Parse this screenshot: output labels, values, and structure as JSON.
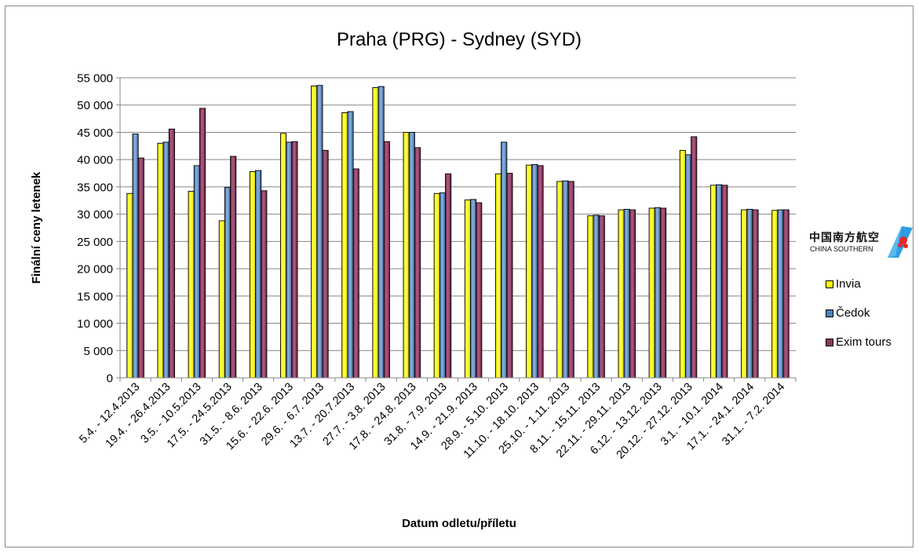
{
  "chart_data": {
    "type": "bar",
    "title": "Praha (PRG) - Sydney (SYD)",
    "xlabel": "Datum odletu/příletu",
    "ylabel": "Finální ceny letenek",
    "ylim": [
      0,
      55000
    ],
    "yticks": [
      0,
      5000,
      10000,
      15000,
      20000,
      25000,
      30000,
      35000,
      40000,
      45000,
      50000,
      55000
    ],
    "ytick_labels": [
      "0",
      "5 000",
      "10 000",
      "15 000",
      "20 000",
      "25 000",
      "30 000",
      "35 000",
      "40 000",
      "45 000",
      "50 000",
      "55 000"
    ],
    "grid": true,
    "legend_position": "right",
    "categories": [
      "5.4. - 12.4.2013",
      "19.4. - 26.4.2013",
      "3.5. - 10.5.2013",
      "17.5. - 24.5.2013",
      "31.5. - 8.6. 2013",
      "15.6. - 22.6. 2013",
      "29.6. - 6.7. 2013",
      "13.7. - 20.7.2013",
      "27.7. - 3.8. 2013",
      "17.8. - 24.8. 2013",
      "31.8. - 7.9. 2013",
      "14.9. - 21.9. 2013",
      "28.9. - 5.10. 2013",
      "11.10. - 18.10. 2013",
      "25.10. - 1.11. 2013",
      "8.11. - 15.11. 2013",
      "22.11. - 29.11. 2013",
      "6.12. - 13.12. 2013",
      "20.12. - 27.12. 2013",
      "3.1. - 10.1. 2014",
      "17.1. - 24.1. 2014",
      "31.1. - 7.2. 2014"
    ],
    "series": [
      {
        "name": "Invia",
        "color": "#ffff00",
        "values": [
          33800,
          43000,
          34200,
          28800,
          37800,
          44800,
          53500,
          48600,
          53200,
          45000,
          33800,
          32600,
          37400,
          39000,
          36000,
          29700,
          30800,
          31100,
          41700,
          35300,
          30800,
          30700
        ]
      },
      {
        "name": "Čedok",
        "color": "#4f81bd",
        "values": [
          44700,
          43200,
          38900,
          34900,
          38000,
          43200,
          53600,
          48800,
          53400,
          45000,
          33900,
          32700,
          43200,
          39100,
          36100,
          29800,
          30900,
          31200,
          40900,
          35400,
          30900,
          30800
        ]
      },
      {
        "name": "Exim tours",
        "color": "#8b3a5c",
        "values": [
          40300,
          45600,
          49400,
          40600,
          34300,
          43300,
          41700,
          38300,
          43300,
          42200,
          37400,
          32100,
          37500,
          38900,
          36000,
          29700,
          30800,
          31100,
          44200,
          35300,
          30800,
          30800
        ]
      }
    ]
  },
  "logo": {
    "chinese_text": "中国南方航空",
    "english_text": "CHINA SOUTHERN",
    "icon": "china-southern-kapok-logo",
    "accent_color": "#2d9fe0"
  }
}
